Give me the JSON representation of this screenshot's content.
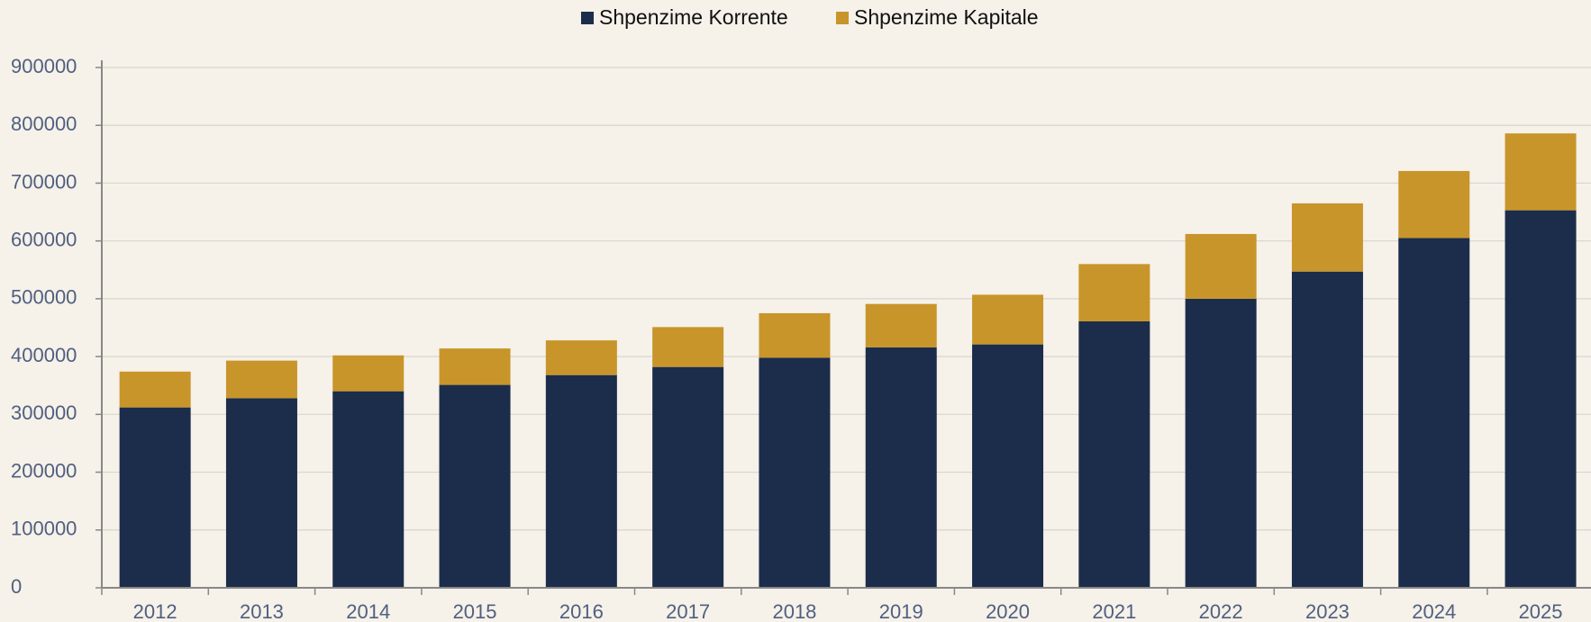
{
  "chart_data": {
    "type": "stacked_bar",
    "categories": [
      "2012",
      "2013",
      "2014",
      "2015",
      "2016",
      "2017",
      "2018",
      "2019",
      "2020",
      "2021",
      "2022",
      "2023",
      "2024",
      "2025"
    ],
    "series": [
      {
        "name": "Shpenzime Korrente",
        "color": "#1b2d4a",
        "values": [
          312000,
          328000,
          340000,
          351000,
          368000,
          382000,
          398000,
          416000,
          421000,
          461000,
          500000,
          547000,
          605000,
          653000
        ]
      },
      {
        "name": "Shpenzime Kapitale",
        "color": "#c8952a",
        "values": [
          62000,
          65000,
          62000,
          63000,
          60000,
          69000,
          77000,
          75000,
          86000,
          99000,
          112000,
          118000,
          116000,
          133000
        ]
      }
    ],
    "ylim": [
      0,
      900000
    ],
    "yticks": [
      0,
      100000,
      200000,
      300000,
      400000,
      500000,
      600000,
      700000,
      800000,
      900000
    ],
    "grid": true,
    "legend": "top"
  }
}
